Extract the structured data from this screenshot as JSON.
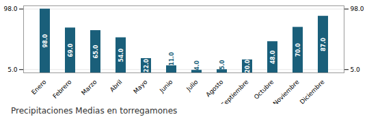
{
  "chart_data": {
    "type": "bar",
    "title": "Precipitaciones Medias en torregamones",
    "categories": [
      "Enero",
      "Febrero",
      "Marzo",
      "Abril",
      "Mayo",
      "Junio",
      "Julio",
      "Agosto",
      "Septiembre",
      "Octubre",
      "Noviembre",
      "Diciembre"
    ],
    "values": [
      98.0,
      69.0,
      65.0,
      54.0,
      22.0,
      11.0,
      4.0,
      5.0,
      20.0,
      48.0,
      70.0,
      87.0
    ],
    "value_labels": [
      "98.0",
      "69.0",
      "65.0",
      "54.0",
      "22.0",
      "11.0",
      "4.0",
      "5.0",
      "20.0",
      "48.0",
      "70.0",
      "87.0"
    ],
    "data_labels": true,
    "color": "#1a5f7a",
    "ylim": [
      0,
      102.9
    ],
    "yticks": [
      {
        "value": 5,
        "label": "5.0"
      },
      {
        "value": 98,
        "label": "98.0"
      }
    ],
    "grid": true
  }
}
